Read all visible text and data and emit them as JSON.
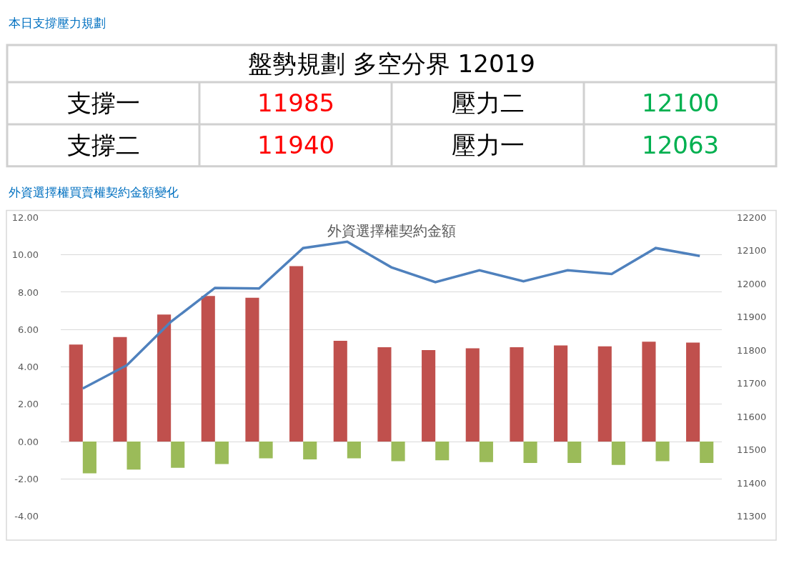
{
  "chart_data": [
    {
      "type": "other",
      "title": "本日支撐壓力規劃",
      "annotations": [
        "盤勢規劃 多空分界 12019",
        "支撐一",
        "11985",
        "壓力二",
        "12100",
        "支撐二",
        "11940",
        "壓力一",
        "12063"
      ],
      "colors": [
        "#000000",
        "#000000",
        "#ff0000",
        "#000000",
        "#00b050",
        "#000000",
        "#ff0000",
        "#000000",
        "#00b050"
      ]
    },
    {
      "type": "bar",
      "title": "外資選擇權買賣權契約金額變化",
      "subtitle": "外資選擇權契約金額",
      "categories": [
        null,
        null,
        null,
        null,
        null,
        null,
        null,
        null,
        null,
        null,
        null,
        null,
        null,
        null,
        null
      ],
      "series": [
        {
          "color": "#c0504d",
          "values": [
            5.2,
            5.6,
            6.8,
            7.8,
            7.7,
            9.4,
            5.4,
            5.05,
            4.9,
            5.0,
            5.05,
            5.15,
            5.1,
            5.35,
            5.3
          ]
        },
        {
          "color": "#9bbb59",
          "values": [
            -1.7,
            -1.5,
            -1.4,
            -1.2,
            -0.9,
            -0.95,
            -0.9,
            -1.05,
            -1.0,
            -1.1,
            -1.15,
            -1.15,
            -1.25,
            -1.05,
            -1.15
          ]
        },
        {
          "type": "line",
          "axis": "y2",
          "color": "#4f81bd",
          "values": [
            11685,
            11755,
            11886,
            11988,
            11986,
            12108,
            12127,
            12050,
            12005,
            12041,
            12008,
            12041,
            12030,
            12108,
            12084
          ]
        }
      ],
      "ylim": [
        -4,
        12
      ],
      "yticks": [
        {
          "value": -4,
          "label": "-4.00"
        },
        {
          "value": -2,
          "label": "-2.00"
        },
        {
          "value": 0,
          "label": "0.00"
        },
        {
          "value": 2,
          "label": "2.00"
        },
        {
          "value": 4,
          "label": "4.00"
        },
        {
          "value": 6,
          "label": "6.00"
        },
        {
          "value": 8,
          "label": "8.00"
        },
        {
          "value": 10,
          "label": "10.00"
        },
        {
          "value": 12,
          "label": "12.00"
        }
      ],
      "y2lim": [
        11300,
        12200
      ],
      "y2ticks": [
        11300,
        11400,
        11500,
        11600,
        11700,
        11800,
        11900,
        12000,
        12100,
        12200
      ],
      "grid": "y",
      "marker": "none",
      "line_style": "solid"
    }
  ]
}
